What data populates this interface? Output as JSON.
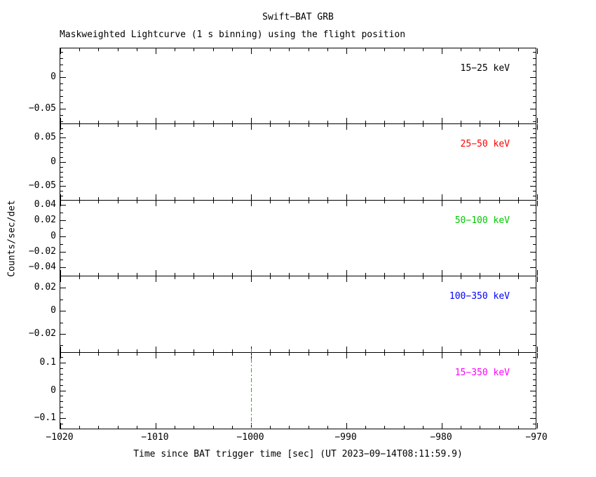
{
  "figure": {
    "title": "Swift−BAT GRB",
    "subtitle": "Maskweighted Lightcurve (1 s binning) using the flight position",
    "xlabel": "Time since BAT trigger time [sec] (UT 2023−09−14T08:11:59.9)",
    "ylabel": "Counts/sec/det"
  },
  "chart_data": {
    "type": "line",
    "title": "Swift−BAT GRB",
    "subtitle": "Maskweighted Lightcurve (1 s binning) using the flight position",
    "xlabel": "Time since BAT trigger time [sec] (UT 2023−09−14T08:11:59.9)",
    "ylabel": "Counts/sec/det",
    "grid": false,
    "legend_position": "inside-top-right-per-panel",
    "x_axis": {
      "min": -1020,
      "max": -970,
      "major_tick_step": 10,
      "minor_tick_step": 2,
      "major_ticks": [
        -1020,
        -1010,
        -1000,
        -990,
        -980,
        -970
      ],
      "tick_labels": [
        "−1020",
        "−1010",
        "−1000",
        "−990",
        "−980",
        "−970"
      ]
    },
    "panels": [
      {
        "band_label": "15−25 keV",
        "color": "#000000",
        "ylim": [
          -0.0755,
          0.0455
        ],
        "yticks": [
          {
            "value": 0,
            "label": "0"
          },
          {
            "value": -0.05,
            "label": "−0.05"
          }
        ],
        "y_minor_step": 0.01,
        "series_points": []
      },
      {
        "band_label": "25−50 keV",
        "color": "#ff0000",
        "ylim": [
          -0.0795,
          0.0785
        ],
        "yticks": [
          {
            "value": 0.05,
            "label": "0.05"
          },
          {
            "value": 0,
            "label": "0"
          },
          {
            "value": -0.05,
            "label": "−0.05"
          }
        ],
        "y_minor_step": 0.01,
        "series_points": []
      },
      {
        "band_label": "50−100 keV",
        "color": "#00c800",
        "ylim": [
          -0.0515,
          0.0455
        ],
        "yticks": [
          {
            "value": 0.04,
            "label": "0.04"
          },
          {
            "value": 0.02,
            "label": "0.02"
          },
          {
            "value": 0,
            "label": "0"
          },
          {
            "value": -0.02,
            "label": "−0.02"
          },
          {
            "value": -0.04,
            "label": "−0.04"
          }
        ],
        "y_minor_step": 0.01,
        "series_points": []
      },
      {
        "band_label": "100−350 keV",
        "color": "#0000ff",
        "ylim": [
          -0.0365,
          0.0295
        ],
        "yticks": [
          {
            "value": 0.02,
            "label": "0.02"
          },
          {
            "value": 0,
            "label": "0"
          },
          {
            "value": -0.02,
            "label": "−0.02"
          }
        ],
        "y_minor_step": 0.01,
        "series_points": []
      },
      {
        "band_label": "15−350 keV",
        "color": "#ff00ff",
        "ylim": [
          -0.141,
          0.136
        ],
        "yticks": [
          {
            "value": 0.1,
            "label": "0.1"
          },
          {
            "value": 0,
            "label": "0"
          },
          {
            "value": -0.1,
            "label": "−0.1"
          }
        ],
        "y_minor_step": 0.02,
        "series_points": []
      }
    ],
    "annotations": [
      {
        "type": "vline",
        "panel_index": 4,
        "x": -1000,
        "color": "#00c800",
        "line_style": "dash-dot"
      }
    ],
    "notes": "Panels contain no visible lightcurve data points; only axes, tick marks, band labels and the dash-dot marker line at x = −1000 in the bottom panel."
  }
}
